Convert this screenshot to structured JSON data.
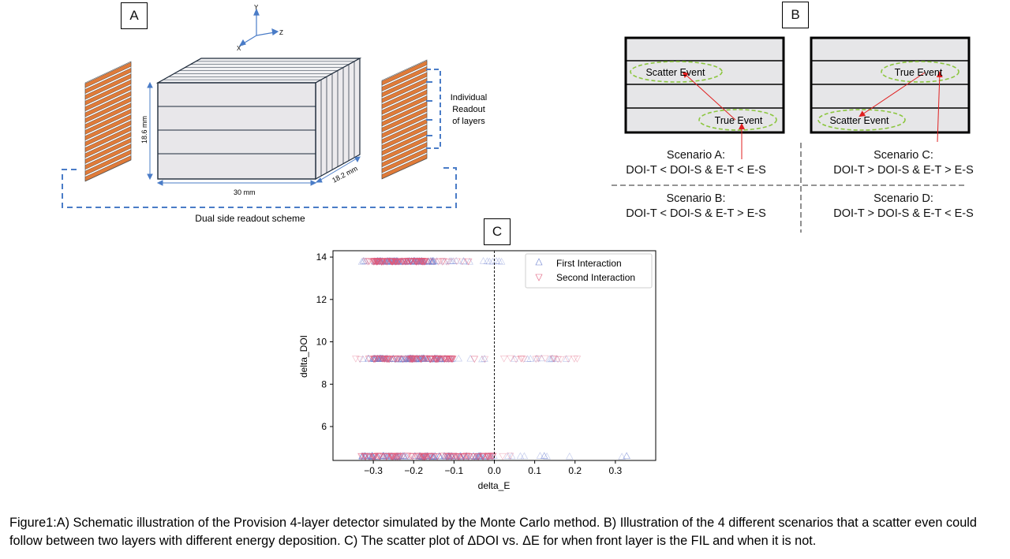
{
  "panel_labels": {
    "a": "A",
    "b": "B",
    "c": "C"
  },
  "panel_a": {
    "axis_y": "Y",
    "axis_z": "Z",
    "axis_x": "X",
    "height_dim": "18.6 mm",
    "width_dim": "30 mm",
    "depth_dim": "18.2 mm",
    "readout_note": [
      "Individual",
      "Readout",
      "of layers"
    ],
    "scheme_label": "Dual side readout scheme",
    "colors": {
      "readout_strip": "#e07b39",
      "crystal_face": "#e8e7ea",
      "dashed": "#4a7cc7"
    }
  },
  "panel_b": {
    "scatter_event": "Scatter Event",
    "true_event": "True Event",
    "scenario_a": {
      "title": "Scenario A:",
      "formula": "DOI-T < DOI-S & E-T < E-S"
    },
    "scenario_b": {
      "title": "Scenario B:",
      "formula": "DOI-T < DOI-S & E-T > E-S"
    },
    "scenario_c": {
      "title": "Scenario C:",
      "formula": "DOI-T > DOI-S & E-T > E-S"
    },
    "scenario_d": {
      "title": "Scenario D:",
      "formula": "DOI-T > DOI-S & E-T < E-S"
    },
    "colors": {
      "arrow": "#e02020",
      "ellipse": "#8cc63f",
      "box": "#e6e6e8"
    }
  },
  "chart_data": {
    "type": "scatter",
    "xlabel": "delta_E",
    "ylabel": "delta_DOI",
    "xlim": [
      -0.4,
      0.4
    ],
    "ylim": [
      4.4,
      14.3
    ],
    "xticks": [
      -0.3,
      -0.2,
      -0.1,
      0.0,
      0.1,
      0.2,
      0.3
    ],
    "xtick_labels": [
      "−0.3",
      "−0.2",
      "−0.1",
      "0.0",
      "0.1",
      "0.2",
      "0.3"
    ],
    "yticks": [
      6,
      8,
      10,
      12,
      14
    ],
    "ytick_labels": [
      "6",
      "8",
      "10",
      "12",
      "14"
    ],
    "vline_x": 0.0,
    "legend_position": "top-right",
    "grid": false,
    "series": [
      {
        "name": "First Interaction",
        "marker": "triangle-up",
        "color": "#6a7fd0",
        "bands": [
          {
            "y": 4.6,
            "x_range": [
              -0.36,
              0.36
            ],
            "dense_range": [
              -0.33,
              0.0
            ]
          },
          {
            "y": 9.2,
            "x_range": [
              -0.36,
              0.2
            ],
            "dense_range": [
              -0.3,
              -0.1
            ]
          },
          {
            "y": 13.8,
            "x_range": [
              -0.33,
              0.03
            ],
            "dense_range": [
              -0.3,
              -0.15
            ]
          }
        ]
      },
      {
        "name": "Second Interaction",
        "marker": "triangle-down",
        "color": "#e05a7a",
        "bands": [
          {
            "y": 4.6,
            "x_range": [
              -0.34,
              0.05
            ],
            "dense_range": [
              -0.33,
              0.0
            ]
          },
          {
            "y": 9.2,
            "x_range": [
              -0.35,
              0.21
            ],
            "dense_range": [
              -0.3,
              -0.1
            ]
          },
          {
            "y": 13.8,
            "x_range": [
              -0.32,
              -0.06
            ],
            "dense_range": [
              -0.3,
              -0.17
            ]
          }
        ]
      }
    ]
  },
  "caption": "Figure1:A) Schematic illustration of the Provision 4-layer detector simulated by the Monte Carlo method. B) Illustration of the 4 different scenarios that a scatter even could follow between two layers with different energy deposition. C) The scatter plot of ΔDOI vs. ΔE for when front layer is the FIL and when it is not."
}
